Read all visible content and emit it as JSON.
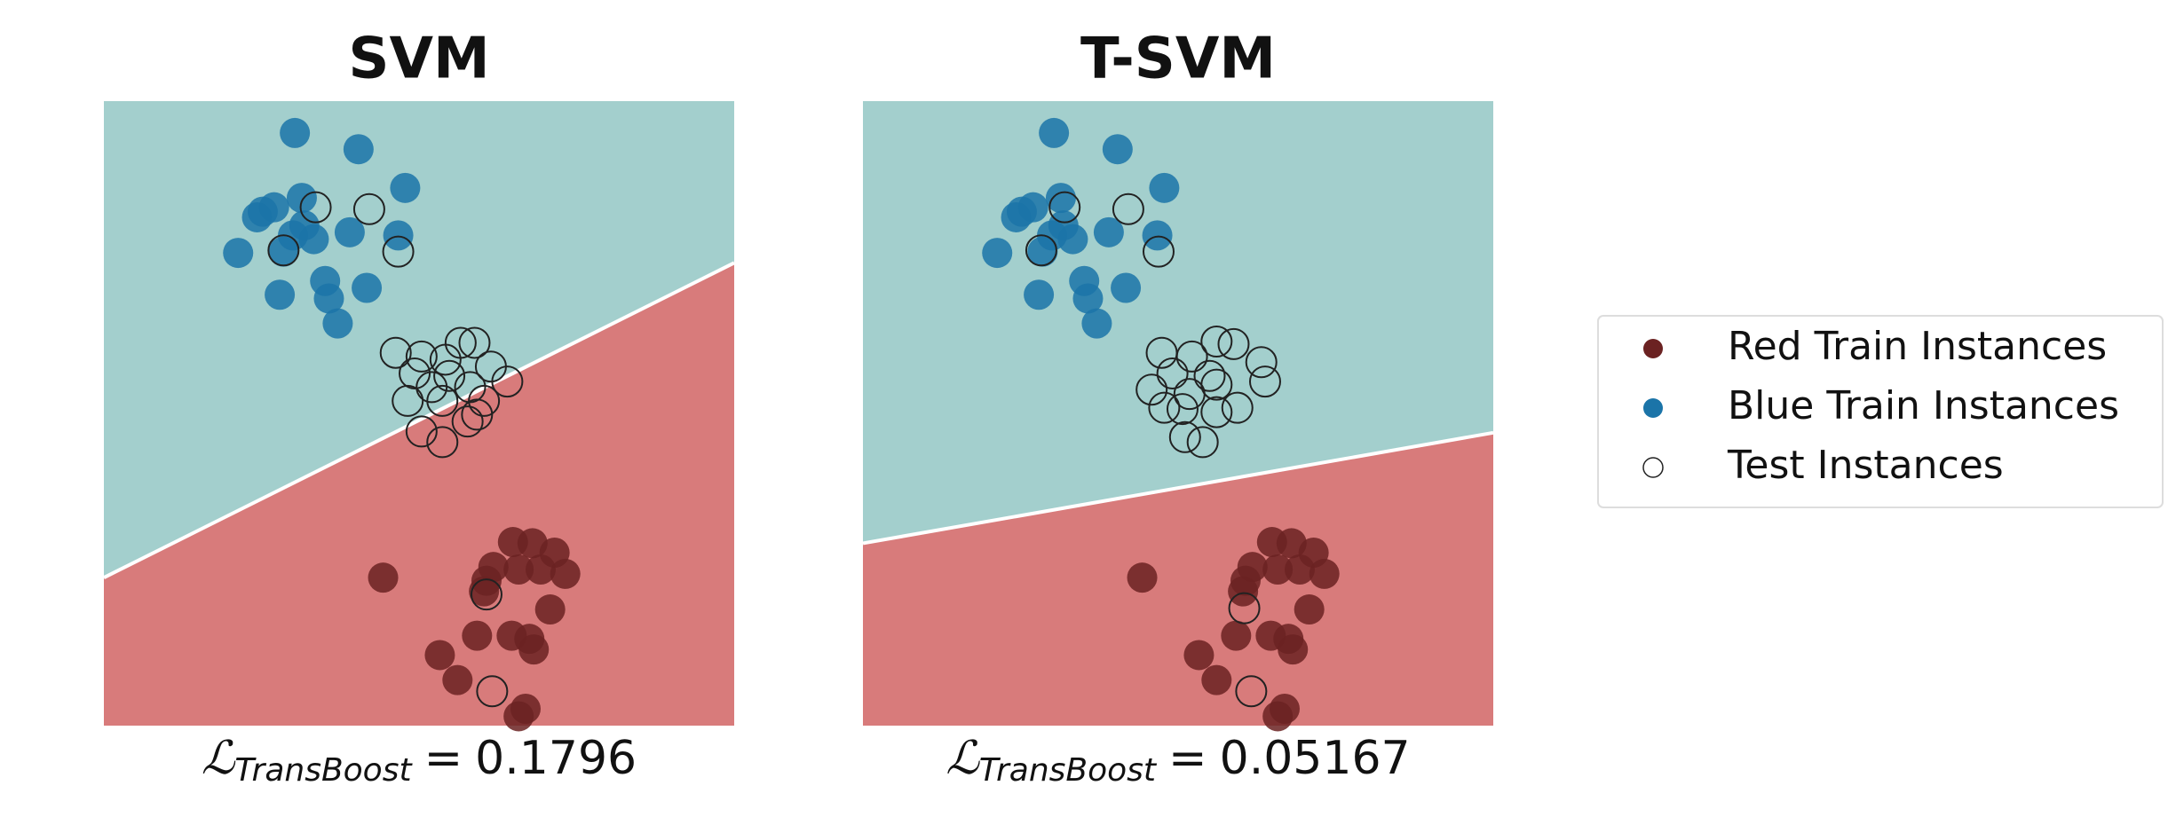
{
  "chart_data": [
    {
      "type": "scatter",
      "title": "SVM",
      "xlim": [
        0,
        10
      ],
      "ylim": [
        0,
        10
      ],
      "regions": [
        "#a3cfcd",
        "#d87b7b"
      ],
      "boundary": {
        "x": [
          0,
          10
        ],
        "y": [
          2.37,
          7.41
        ]
      },
      "caption": {
        "symbol": "ℒ",
        "subscript": "TransBoost",
        "equals": "=",
        "value": 0.1796
      },
      "series": [
        {
          "name": "Red Train Instances",
          "color": "#6b2222",
          "marker": "filled",
          "x": [
            4.43,
            6.49,
            6.8,
            7.15,
            6.18,
            6.58,
            6.93,
            7.32,
            6.03,
            7.08,
            5.92,
            6.47,
            6.75,
            6.82,
            5.33,
            5.61,
            6.69,
            6.58,
            6.07
          ],
          "y": [
            2.37,
            2.94,
            2.92,
            2.77,
            2.54,
            2.5,
            2.5,
            2.43,
            2.15,
            1.86,
            1.44,
            1.44,
            1.39,
            1.22,
            1.13,
            0.73,
            0.27,
            0.15,
            2.32
          ]
        },
        {
          "name": "Blue Train Instances",
          "color": "#1b74a8",
          "marker": "filled",
          "x": [
            3.03,
            4.04,
            4.78,
            3.14,
            2.52,
            2.43,
            2.7,
            3.18,
            3.33,
            3.9,
            4.67,
            2.13,
            2.85,
            3.51,
            4.17,
            2.79,
            3.57,
            3.71,
            3.0
          ],
          "y": [
            9.49,
            9.23,
            8.61,
            8.45,
            8.23,
            8.14,
            8.3,
            8.01,
            7.79,
            7.9,
            7.85,
            7.57,
            7.59,
            7.12,
            7.01,
            6.9,
            6.84,
            6.44,
            7.85
          ]
        },
        {
          "name": "Test Instances",
          "color": "#222222",
          "marker": "open",
          "x": [
            3.36,
            4.21,
            2.85,
            4.67,
            4.63,
            5.04,
            5.42,
            5.66,
            5.88,
            4.93,
            5.48,
            6.14,
            5.2,
            5.81,
            6.4,
            4.82,
            5.37,
            6.03,
            5.04,
            5.37,
            5.92,
            5.77,
            6.07,
            6.16
          ],
          "y": [
            8.3,
            8.27,
            7.61,
            7.59,
            5.97,
            5.91,
            5.86,
            6.13,
            6.13,
            5.64,
            5.6,
            5.75,
            5.42,
            5.42,
            5.51,
            5.2,
            5.2,
            5.2,
            4.71,
            4.54,
            4.98,
            4.87,
            2.1,
            0.55
          ]
        }
      ]
    },
    {
      "type": "scatter",
      "title": "T-SVM",
      "xlim": [
        0,
        10
      ],
      "ylim": [
        0,
        10
      ],
      "regions": [
        "#a3cfcd",
        "#d87b7b"
      ],
      "boundary": {
        "x": [
          0,
          10
        ],
        "y": [
          2.92,
          4.69
        ]
      },
      "caption": {
        "symbol": "ℒ",
        "subscript": "TransBoost",
        "equals": "=",
        "value": 0.05167
      },
      "series": [
        {
          "name": "Red Train Instances",
          "color": "#6b2222",
          "marker": "filled",
          "x": [
            4.43,
            6.49,
            6.8,
            7.15,
            6.18,
            6.58,
            6.93,
            7.32,
            6.03,
            7.08,
            5.92,
            6.47,
            6.75,
            6.82,
            5.33,
            5.61,
            6.69,
            6.58,
            6.07
          ],
          "y": [
            2.37,
            2.94,
            2.92,
            2.77,
            2.54,
            2.5,
            2.5,
            2.43,
            2.15,
            1.86,
            1.44,
            1.44,
            1.39,
            1.22,
            1.13,
            0.73,
            0.27,
            0.15,
            2.32
          ]
        },
        {
          "name": "Blue Train Instances",
          "color": "#1b74a8",
          "marker": "filled",
          "x": [
            3.03,
            4.04,
            4.78,
            3.14,
            2.52,
            2.43,
            2.7,
            3.18,
            3.33,
            3.9,
            4.67,
            2.13,
            2.85,
            3.51,
            4.17,
            2.79,
            3.57,
            3.71,
            3.0
          ],
          "y": [
            9.49,
            9.23,
            8.61,
            8.45,
            8.23,
            8.14,
            8.3,
            8.01,
            7.79,
            7.9,
            7.85,
            7.57,
            7.59,
            7.12,
            7.01,
            6.9,
            6.84,
            6.44,
            7.85
          ]
        },
        {
          "name": "Test Instances",
          "color": "#222222",
          "marker": "open",
          "x": [
            2.83,
            4.21,
            4.69,
            3.2,
            4.74,
            5.22,
            5.61,
            5.88,
            4.91,
            5.5,
            6.32,
            4.58,
            5.18,
            5.61,
            6.38,
            4.78,
            5.07,
            5.61,
            5.94,
            5.11,
            5.39,
            6.05,
            6.16
          ],
          "y": [
            7.61,
            8.27,
            7.59,
            8.3,
            5.97,
            5.91,
            6.15,
            6.11,
            5.64,
            5.6,
            5.82,
            5.38,
            5.31,
            5.46,
            5.51,
            5.09,
            5.07,
            5.02,
            5.09,
            4.62,
            4.54,
            1.88,
            0.55
          ]
        }
      ]
    }
  ]
}
